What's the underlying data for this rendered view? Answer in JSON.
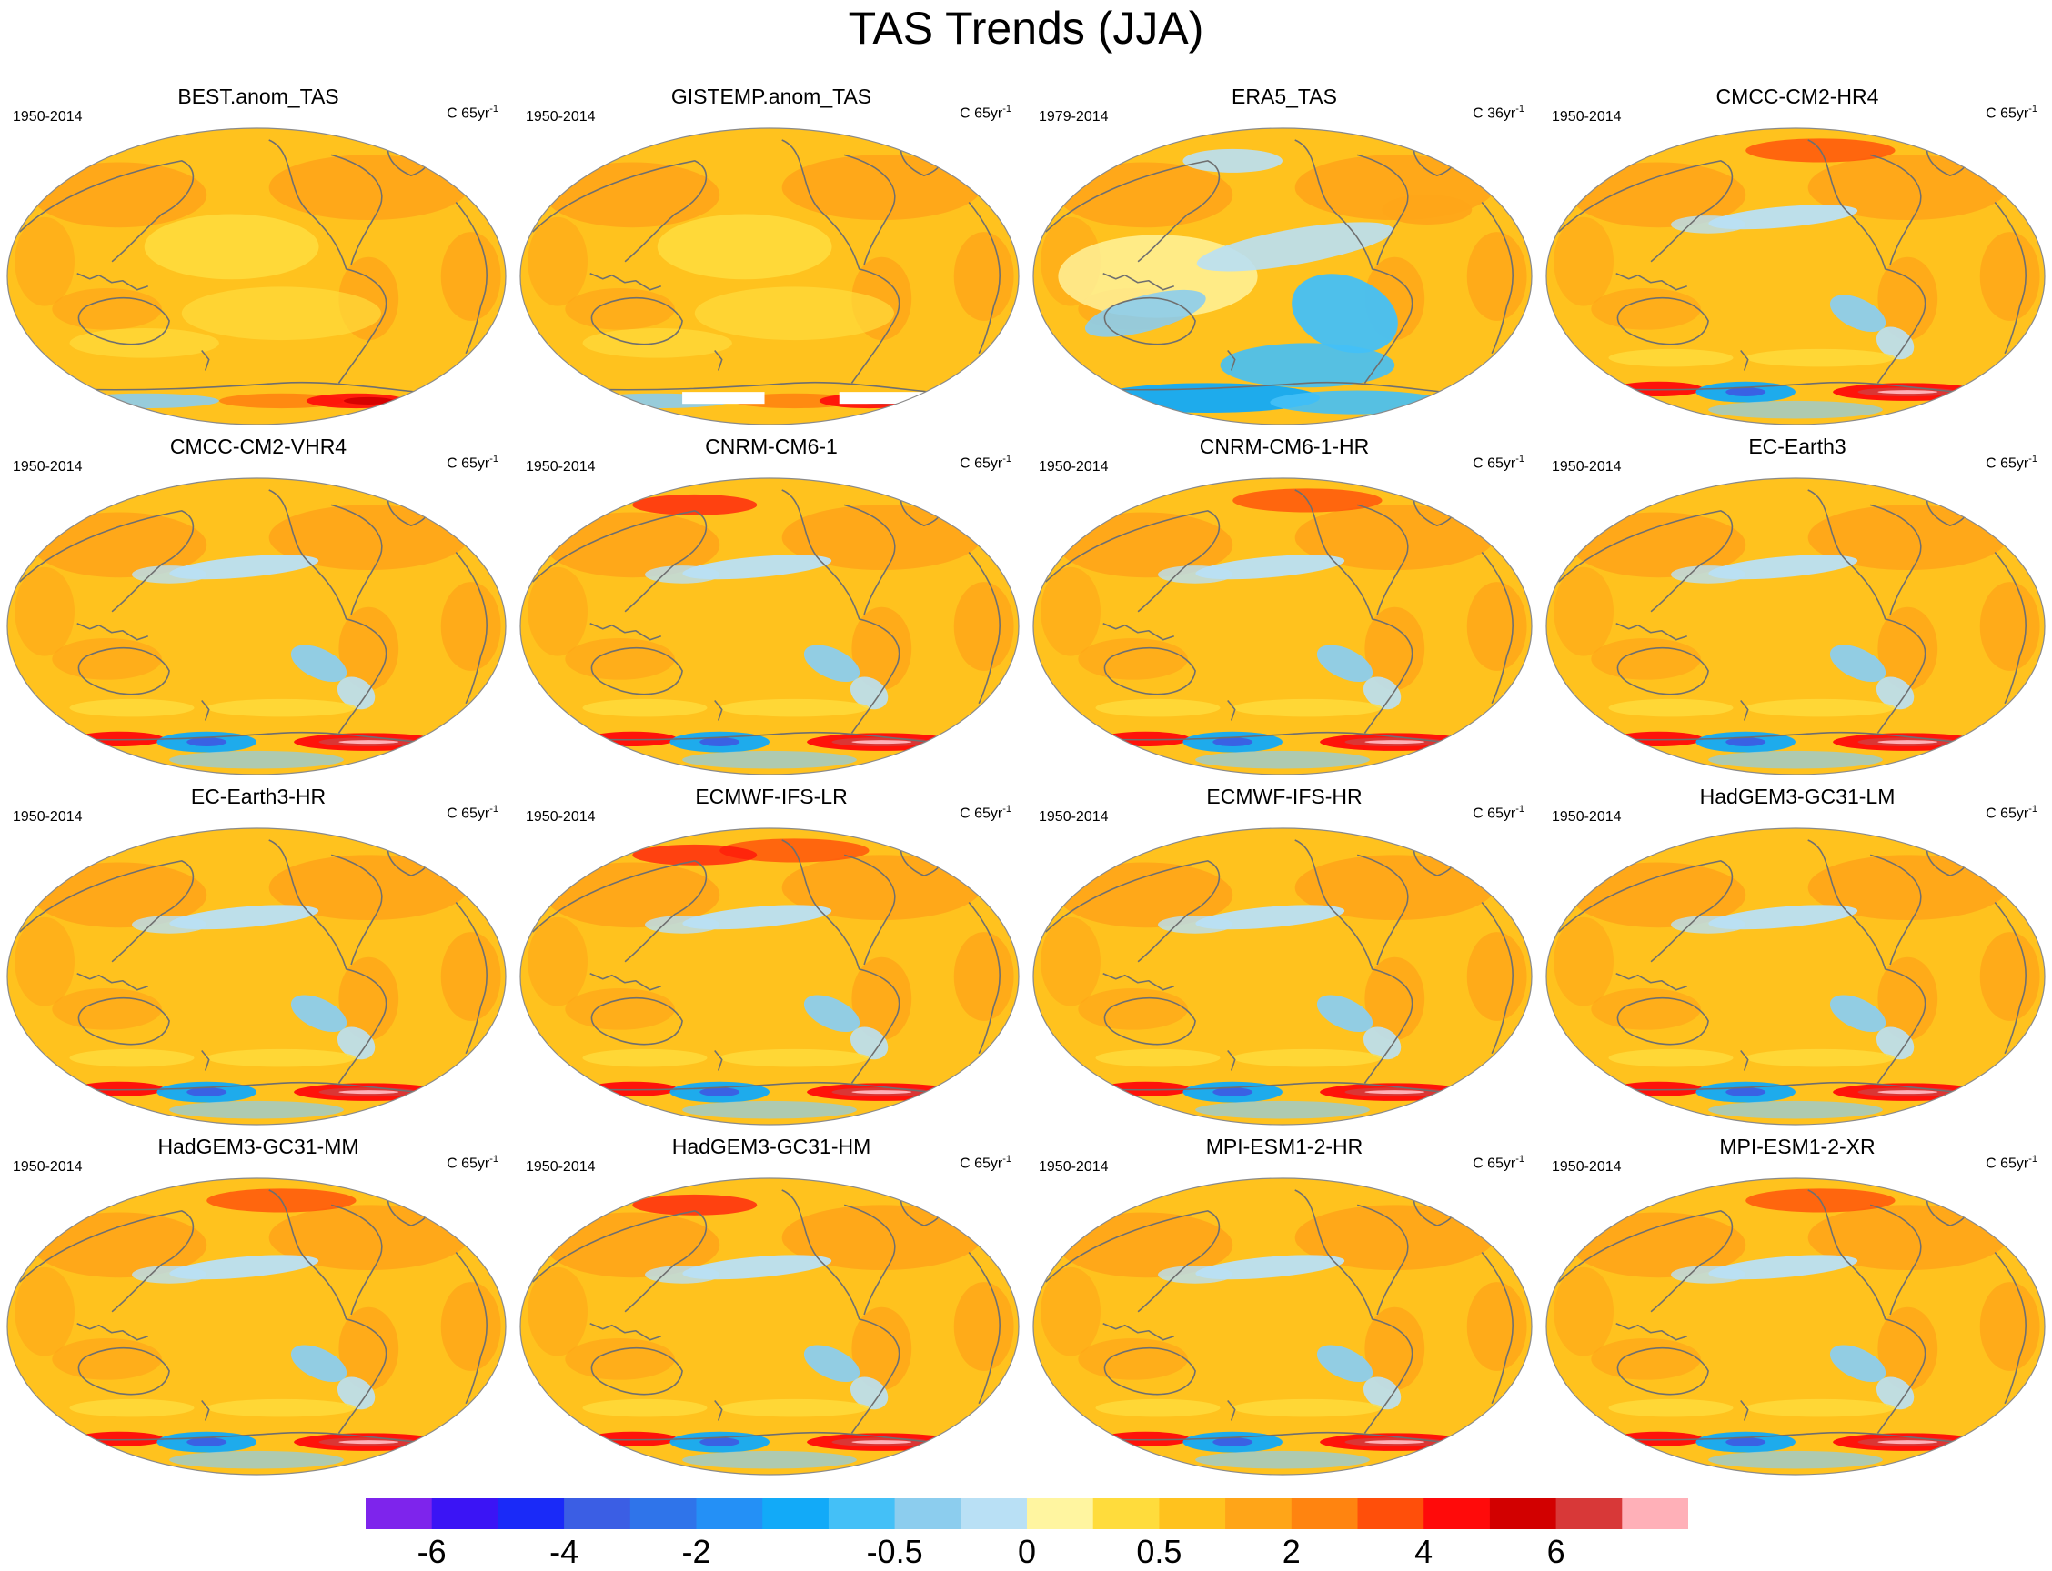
{
  "title": "TAS Trends (JJA)",
  "panels": [
    {
      "title": "BEST.anom_TAS",
      "period": "1950-2014",
      "units_prefix": "C 65yr",
      "units_exp": "-1",
      "style": "obs-smooth"
    },
    {
      "title": "GISTEMP.anom_TAS",
      "period": "1950-2014",
      "units_prefix": "C 65yr",
      "units_exp": "-1",
      "style": "obs-gisstemp"
    },
    {
      "title": "ERA5_TAS",
      "period": "1979-2014",
      "units_prefix": "C 36yr",
      "units_exp": "-1",
      "style": "era5"
    },
    {
      "title": "CMCC-CM2-HR4",
      "period": "1950-2014",
      "units_prefix": "C 65yr",
      "units_exp": "-1",
      "style": "model"
    },
    {
      "title": "CMCC-CM2-VHR4",
      "period": "1950-2014",
      "units_prefix": "C 65yr",
      "units_exp": "-1",
      "style": "model"
    },
    {
      "title": "CNRM-CM6-1",
      "period": "1950-2014",
      "units_prefix": "C 65yr",
      "units_exp": "-1",
      "style": "model"
    },
    {
      "title": "CNRM-CM6-1-HR",
      "period": "1950-2014",
      "units_prefix": "C 65yr",
      "units_exp": "-1",
      "style": "model"
    },
    {
      "title": "EC-Earth3",
      "period": "1950-2014",
      "units_prefix": "C 65yr",
      "units_exp": "-1",
      "style": "model"
    },
    {
      "title": "EC-Earth3-HR",
      "period": "1950-2014",
      "units_prefix": "C 65yr",
      "units_exp": "-1",
      "style": "model"
    },
    {
      "title": "ECMWF-IFS-LR",
      "period": "1950-2014",
      "units_prefix": "C 65yr",
      "units_exp": "-1",
      "style": "model"
    },
    {
      "title": "ECMWF-IFS-HR",
      "period": "1950-2014",
      "units_prefix": "C 65yr",
      "units_exp": "-1",
      "style": "model"
    },
    {
      "title": "HadGEM3-GC31-LM",
      "period": "1950-2014",
      "units_prefix": "C 65yr",
      "units_exp": "-1",
      "style": "model"
    },
    {
      "title": "HadGEM3-GC31-MM",
      "period": "1950-2014",
      "units_prefix": "C 65yr",
      "units_exp": "-1",
      "style": "model"
    },
    {
      "title": "HadGEM3-GC31-HM",
      "period": "1950-2014",
      "units_prefix": "C 65yr",
      "units_exp": "-1",
      "style": "model"
    },
    {
      "title": "MPI-ESM1-2-HR",
      "period": "1950-2014",
      "units_prefix": "C 65yr",
      "units_exp": "-1",
      "style": "model"
    },
    {
      "title": "MPI-ESM1-2-XR",
      "period": "1950-2014",
      "units_prefix": "C 65yr",
      "units_exp": "-1",
      "style": "model"
    }
  ],
  "colorbar": {
    "colors": [
      "#7e24ec",
      "#3b14f5",
      "#1a2af8",
      "#3b5ee4",
      "#2f74ea",
      "#2490f6",
      "#12aaf8",
      "#44c0f7",
      "#8ccdee",
      "#b9e0f5",
      "#fff5a0",
      "#ffdc3c",
      "#ffc21e",
      "#ffa518",
      "#ff8410",
      "#ff4f0a",
      "#ff0a0a",
      "#d20000",
      "#d83838",
      "#ffb0b8"
    ],
    "tick_labels": [
      {
        "label": "-6",
        "boundary": 1
      },
      {
        "label": "-4",
        "boundary": 3
      },
      {
        "label": "-2",
        "boundary": 5
      },
      {
        "label": "-0.5",
        "boundary": 8
      },
      {
        "label": "0",
        "boundary": 10
      },
      {
        "label": "0.5",
        "boundary": 12
      },
      {
        "label": "2",
        "boundary": 14
      },
      {
        "label": "4",
        "boundary": 16
      },
      {
        "label": "6",
        "boundary": 18
      }
    ]
  }
}
